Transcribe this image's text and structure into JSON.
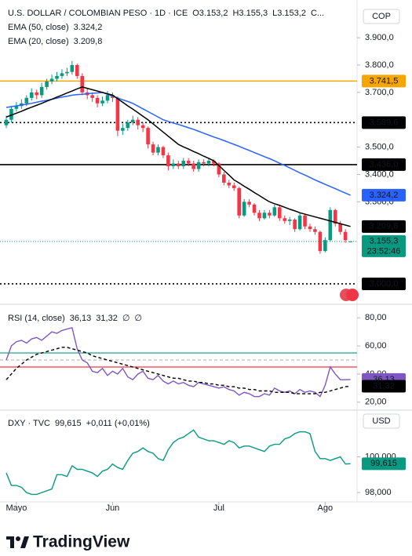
{
  "chart_data": [
    {
      "type": "candlestick",
      "title": "U.S. DOLLAR / COLOMBIAN PESO · 1D · ICE",
      "ohlc_text": [
        "O3.153,2",
        "H3.155,3",
        "L3.153,2",
        "C..."
      ],
      "currency": "COP",
      "categories": [
        null,
        null,
        "Mayo",
        null,
        null,
        null,
        null,
        null,
        null,
        null,
        null,
        null,
        null,
        null,
        null,
        null,
        null,
        null,
        null,
        null,
        null,
        "Jun",
        null,
        null,
        null,
        null,
        null,
        null,
        null,
        null,
        null,
        null,
        null,
        null,
        null,
        null,
        null,
        null,
        null,
        null,
        null,
        null,
        "Jul",
        null,
        null,
        null,
        null,
        null,
        null,
        null,
        null,
        null,
        null,
        null,
        null,
        null,
        null,
        null,
        null,
        null,
        null,
        null,
        null,
        "Ago",
        null,
        null,
        null,
        null,
        null
      ],
      "open": [
        3580,
        3600,
        3640,
        3650,
        3660,
        3680,
        3700,
        3690,
        3720,
        3740,
        3750,
        3760,
        3770,
        3775,
        3800,
        3760,
        3700,
        3690,
        3680,
        3660,
        3670,
        3690,
        3680,
        3560,
        3570,
        3590,
        3600,
        3580,
        3570,
        3510,
        3480,
        3500,
        3470,
        3430,
        3440,
        3430,
        3450,
        3440,
        3420,
        3445,
        3440,
        3450,
        3440,
        3400,
        3370,
        3360,
        3350,
        3250,
        3300,
        3290,
        3260,
        3240,
        3260,
        3250,
        3280,
        3240,
        3230,
        3235,
        3200,
        3250,
        3210,
        3200,
        3190,
        3120,
        3160,
        3270,
        3220,
        3190,
        3153.2
      ],
      "high": [
        3615,
        3650,
        3665,
        3675,
        3690,
        3715,
        3710,
        3735,
        3750,
        3765,
        3775,
        3785,
        3790,
        3815,
        3805,
        3770,
        3715,
        3700,
        3690,
        3685,
        3705,
        3700,
        3685,
        3585,
        3600,
        3615,
        3610,
        3590,
        3575,
        3520,
        3510,
        3505,
        3480,
        3455,
        3450,
        3460,
        3460,
        3450,
        3455,
        3455,
        3460,
        3455,
        3445,
        3410,
        3380,
        3370,
        3355,
        3310,
        3310,
        3295,
        3270,
        3270,
        3270,
        3290,
        3285,
        3250,
        3245,
        3240,
        3260,
        3255,
        3220,
        3210,
        3195,
        3170,
        3280,
        3275,
        3230,
        3200,
        3155.3
      ],
      "low": [
        3570,
        3590,
        3630,
        3640,
        3650,
        3670,
        3675,
        3680,
        3710,
        3730,
        3740,
        3750,
        3760,
        3765,
        3750,
        3690,
        3675,
        3665,
        3645,
        3650,
        3660,
        3665,
        3540,
        3545,
        3560,
        3580,
        3565,
        3555,
        3495,
        3470,
        3470,
        3460,
        3415,
        3420,
        3420,
        3420,
        3430,
        3410,
        3410,
        3430,
        3430,
        3430,
        3390,
        3360,
        3350,
        3340,
        3240,
        3245,
        3280,
        3250,
        3230,
        3235,
        3240,
        3245,
        3230,
        3220,
        3215,
        3190,
        3195,
        3200,
        3190,
        3180,
        3110,
        3115,
        3155,
        3210,
        3180,
        3150,
        3153.2
      ],
      "close": [
        3600,
        3640,
        3650,
        3660,
        3680,
        3700,
        3690,
        3720,
        3740,
        3750,
        3760,
        3770,
        3775,
        3800,
        3760,
        3700,
        3690,
        3680,
        3660,
        3670,
        3690,
        3680,
        3560,
        3570,
        3590,
        3600,
        3580,
        3570,
        3510,
        3480,
        3500,
        3470,
        3430,
        3440,
        3430,
        3450,
        3440,
        3420,
        3445,
        3440,
        3450,
        3440,
        3400,
        3370,
        3360,
        3350,
        3250,
        3300,
        3290,
        3260,
        3240,
        3260,
        3250,
        3280,
        3240,
        3230,
        3235,
        3200,
        3250,
        3210,
        3200,
        3190,
        3120,
        3160,
        3270,
        3220,
        3190,
        3160,
        3155.3
      ],
      "up_color": "#089981",
      "down_color": "#f23645",
      "series": [
        {
          "name": "EMA (50, close)",
          "color": "#2962ff",
          "value_label": "3.324,2",
          "values": [
            3645,
            3648,
            3651,
            3654,
            3657,
            3660,
            3664,
            3668,
            3671,
            3675,
            3679,
            3683,
            3686,
            3690,
            3692,
            3693,
            3695,
            3697,
            3698,
            3700,
            3693,
            3687,
            3680,
            3673,
            3667,
            3660,
            3650,
            3640,
            3630,
            3620,
            3610,
            3600,
            3594,
            3588,
            3583,
            3577,
            3571,
            3565,
            3558,
            3551,
            3544,
            3537,
            3531,
            3524,
            3517,
            3510,
            3503,
            3495,
            3488,
            3480,
            3473,
            3465,
            3458,
            3450,
            3441,
            3433,
            3424,
            3415,
            3406,
            3398,
            3389,
            3380,
            3372,
            3364,
            3356,
            3348,
            3340,
            3332,
            3324.2
          ]
        },
        {
          "name": "EMA (20, close)",
          "color": "#000000",
          "value_label": "3.209,8",
          "values": [
            3610,
            3617,
            3624,
            3631,
            3639,
            3646,
            3653,
            3660,
            3668,
            3675,
            3683,
            3690,
            3698,
            3705,
            3713,
            3720,
            3715,
            3710,
            3705,
            3700,
            3695,
            3690,
            3677,
            3664,
            3651,
            3639,
            3626,
            3613,
            3600,
            3585,
            3570,
            3555,
            3540,
            3525,
            3510,
            3501,
            3493,
            3484,
            3476,
            3467,
            3459,
            3450,
            3433,
            3415,
            3398,
            3380,
            3369,
            3357,
            3346,
            3334,
            3323,
            3311,
            3300,
            3293,
            3287,
            3280,
            3273,
            3267,
            3260,
            3255,
            3250,
            3245,
            3240,
            3235,
            3230,
            3225,
            3220,
            3215,
            3209.8
          ]
        }
      ],
      "levels": [
        {
          "value": 3741.5,
          "label": "3.741,5",
          "color": "#f7a600",
          "style": "solid"
        },
        {
          "value": 3589.6,
          "label": "3.589,6",
          "color": "#000000",
          "style": "dotted"
        },
        {
          "value": 3436.0,
          "label": "3.436,0",
          "color": "#000000",
          "style": "solid"
        },
        {
          "value": 3000.0,
          "label": "3.000,0",
          "color": "#000000",
          "style": "dotted"
        }
      ],
      "last_price": {
        "value": 3155.3,
        "label": "3.155,3",
        "countdown": "23:52:46",
        "color": "#089981"
      },
      "ylim": [
        2934,
        4015
      ],
      "yticks": [
        {
          "value": 3900,
          "label": "3.900,0"
        },
        {
          "value": 3800,
          "label": "3.800,0"
        },
        {
          "value": 3700,
          "label": "3.700,0"
        },
        {
          "value": 3500,
          "label": "3.500,0"
        },
        {
          "value": 3400,
          "label": "3.400,0"
        },
        {
          "value": 3300,
          "label": "3.300,0"
        }
      ]
    },
    {
      "type": "line",
      "title": "RSI (14, close)",
      "extra_legend": [
        "∅",
        "∅"
      ],
      "series": [
        {
          "color": "#7e57c2",
          "style": "solid",
          "value_label": "36,13",
          "values": [
            50,
            60,
            63,
            64,
            62,
            65,
            66,
            64,
            67,
            70,
            69,
            71,
            72,
            73,
            58,
            50,
            48,
            42,
            41,
            44,
            39,
            42,
            40,
            44,
            38,
            36,
            40,
            42,
            37,
            36,
            39,
            35,
            33,
            35,
            33,
            34,
            32,
            31,
            34,
            33,
            32,
            31,
            30,
            31,
            29,
            28,
            25,
            27,
            26,
            24,
            24,
            26,
            25,
            30,
            28,
            27,
            28,
            26,
            29,
            27,
            28,
            27,
            24,
            32,
            45,
            40,
            36,
            36,
            36.13
          ]
        },
        {
          "color": "#000000",
          "style": "dashed",
          "value_label": "31,32",
          "values": [
            36,
            40,
            44,
            47,
            50,
            52,
            54,
            55,
            56,
            57,
            58,
            59,
            59,
            58,
            57,
            56,
            55,
            53,
            52,
            51,
            50,
            49,
            48,
            47,
            46,
            45,
            44,
            43,
            42,
            41,
            40,
            39,
            38,
            37,
            37,
            36,
            35,
            35,
            34,
            34,
            33,
            33,
            32,
            32,
            31,
            31,
            30,
            30,
            29,
            29,
            28,
            28,
            28,
            27,
            27,
            27,
            27,
            26,
            26,
            26,
            26,
            26,
            27,
            27,
            28,
            29,
            30,
            31,
            31.32
          ]
        }
      ],
      "levels": [
        {
          "value": 55,
          "color": "#089981",
          "style": "solid"
        },
        {
          "value": 50,
          "color": "#b2b5be",
          "style": "dashed"
        },
        {
          "value": 45,
          "color": "#f23645",
          "style": "solid"
        }
      ],
      "ylim": [
        16,
        87.4
      ],
      "yticks": [
        {
          "value": 80,
          "label": "80,00"
        },
        {
          "value": 60,
          "label": "60,00"
        },
        {
          "value": 40,
          "label": "40,00"
        },
        {
          "value": 20,
          "label": "20,00"
        }
      ]
    },
    {
      "type": "line",
      "title": "DXY · TVC",
      "change": "+0,011 (+0,01%)",
      "currency": "USD",
      "series": [
        {
          "color": "#089981",
          "style": "solid",
          "value_label": "99,615",
          "values": [
            99.1,
            98.4,
            98.4,
            98.3,
            98.0,
            97.9,
            97.9,
            98.0,
            98.1,
            98.2,
            99.0,
            99.0,
            98.9,
            99.5,
            99.3,
            99.3,
            99.2,
            99.1,
            98.9,
            99.2,
            99.3,
            99.6,
            99.4,
            99.3,
            99.8,
            100.2,
            100.3,
            100.5,
            100.3,
            100.2,
            99.9,
            99.8,
            100.4,
            100.8,
            101.0,
            101.1,
            101.3,
            101.5,
            101.1,
            101.0,
            100.9,
            100.9,
            100.8,
            100.7,
            100.9,
            100.8,
            100.5,
            100.6,
            100.6,
            100.5,
            100.4,
            100.3,
            100.6,
            100.7,
            100.7,
            101.0,
            101.1,
            101.3,
            101.4,
            101.4,
            101.3,
            100.3,
            99.9,
            99.9,
            99.8,
            99.9,
            100.0,
            99.6,
            99.615
          ]
        }
      ],
      "ylim": [
        97.48,
        102.48
      ],
      "yticks": [
        {
          "value": 100,
          "label": "100,000"
        },
        {
          "value": 98,
          "label": "98,000"
        }
      ]
    }
  ],
  "brand": "TradingView"
}
